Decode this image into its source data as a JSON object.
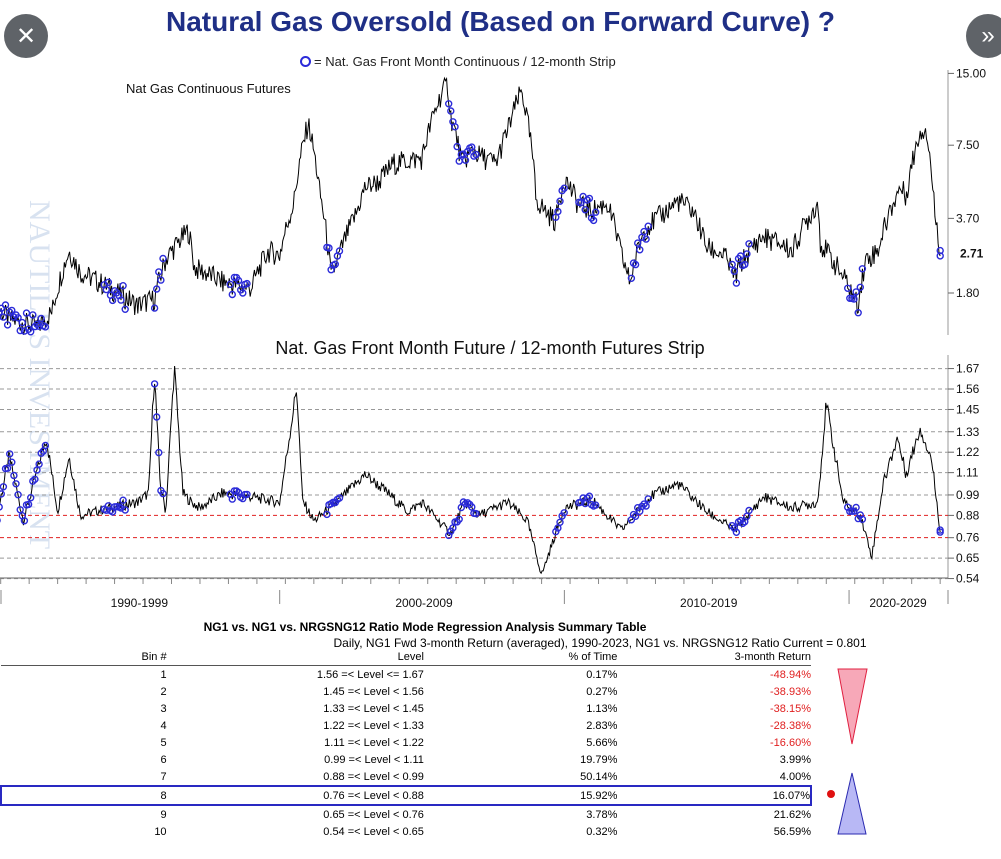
{
  "title": "Natural Gas Oversold (Based on Forward Curve) ?",
  "buttons": {
    "close_icon": "✕",
    "next_icon": "»"
  },
  "watermark": "NAUTILUS INVESTMENT",
  "legend": {
    "text": "= Nat. Gas Front Month Continuous / 12-month Strip"
  },
  "colors": {
    "price_line": "#000000",
    "marker": "#2b2bd9",
    "threshold": "#e02020",
    "title": "#1f2f86",
    "down_triangle": "#f7a8b8",
    "up_triangle": "#b8b8f5"
  },
  "chart_data": [
    {
      "type": "line",
      "title": "Nat Gas Continuous Futures",
      "yscale": "log",
      "ylim": [
        1.2,
        15.5
      ],
      "yticks": [
        "15.00",
        "7.50",
        "3.70",
        "1.80"
      ],
      "current_label": "2.71",
      "x_sections": [
        "1990-1999",
        "2000-2009",
        "2010-2019",
        "2020-2029"
      ],
      "x": [
        1990.0,
        1990.5,
        1991.0,
        1991.5,
        1992.0,
        1992.6,
        1993.0,
        1994.0,
        1995.0,
        1995.6,
        1996.0,
        1996.8,
        1997.0,
        1997.7,
        1998.0,
        1998.8,
        1999.0,
        1999.6,
        2000.0,
        2000.5,
        2001.0,
        2001.4,
        2001.8,
        2002.0,
        2002.7,
        2003.0,
        2003.5,
        2004.0,
        2004.6,
        2005.0,
        2005.7,
        2005.9,
        2006.0,
        2006.4,
        2006.8,
        2007.0,
        2007.6,
        2008.0,
        2008.5,
        2008.9,
        2009.0,
        2009.3,
        2009.7,
        2010.0,
        2010.5,
        2011.0,
        2011.5,
        2012.0,
        2012.3,
        2012.8,
        2013.0,
        2013.5,
        2014.0,
        2014.5,
        2015.0,
        2015.6,
        2016.0,
        2016.2,
        2016.7,
        2017.0,
        2017.6,
        2018.0,
        2018.9,
        2019.0,
        2019.6,
        2020.0,
        2020.3,
        2020.6,
        2021.0,
        2021.8,
        2022.0,
        2022.5,
        2022.7,
        2023.0,
        2023.2
      ],
      "values": [
        1.6,
        1.4,
        1.35,
        1.3,
        1.5,
        2.7,
        2.2,
        1.9,
        1.6,
        1.7,
        2.5,
        3.3,
        2.3,
        2.1,
        2.0,
        1.9,
        1.9,
        2.7,
        2.6,
        4.3,
        9.3,
        4.8,
        2.1,
        2.4,
        3.9,
        5.0,
        5.3,
        6.3,
        6.5,
        6.6,
        12.5,
        13.5,
        10.0,
        6.3,
        7.2,
        6.8,
        6.3,
        8.6,
        12.7,
        6.4,
        4.5,
        4.0,
        3.6,
        5.5,
        4.2,
        4.0,
        4.3,
        2.6,
        2.0,
        3.3,
        3.5,
        3.9,
        4.4,
        4.0,
        2.8,
        2.6,
        2.1,
        2.4,
        2.9,
        3.1,
        2.9,
        2.7,
        4.3,
        2.9,
        2.3,
        1.9,
        1.6,
        2.5,
        2.7,
        5.0,
        4.6,
        8.6,
        8.9,
        4.0,
        2.71
      ],
      "marker_ranges": [
        [
          1990.0,
          1991.8
        ],
        [
          1993.8,
          1994.6
        ],
        [
          1995.6,
          1995.9
        ],
        [
          1998.2,
          1998.9
        ],
        [
          2001.6,
          2002.1
        ],
        [
          2005.9,
          2006.9
        ],
        [
          2009.7,
          2010.0
        ],
        [
          2010.5,
          2011.1
        ],
        [
          2012.3,
          2013.0
        ],
        [
          2015.9,
          2016.5
        ],
        [
          2019.9,
          2020.5
        ],
        [
          2023.2,
          2023.2
        ]
      ]
    },
    {
      "type": "line",
      "title": "Nat. Gas Front Month Future / 12-month Futures Strip",
      "ylim": [
        0.5,
        1.7
      ],
      "yticks": [
        "1.67",
        "1.56",
        "1.45",
        "1.33",
        "1.22",
        "1.11",
        "0.99",
        "0.88",
        "0.76",
        "0.65",
        "0.54"
      ],
      "red_lines": [
        0.88,
        0.76
      ],
      "x_sections": [
        "1990-1999",
        "2000-2009",
        "2010-2019",
        "2020-2029"
      ],
      "x": [
        1990.0,
        1990.5,
        1991.0,
        1991.8,
        1992.2,
        1992.6,
        1993.0,
        1994.0,
        1995.0,
        1995.4,
        1995.6,
        1995.8,
        1996.0,
        1996.3,
        1996.6,
        1996.9,
        1997.2,
        1998.0,
        1999.0,
        2000.0,
        2000.6,
        2000.8,
        2001.2,
        2002.0,
        2003.0,
        2003.8,
        2004.5,
        2005.0,
        2006.0,
        2006.5,
        2007.0,
        2008.0,
        2008.7,
        2009.2,
        2010.0,
        2011.0,
        2012.0,
        2013.0,
        2014.0,
        2015.0,
        2016.0,
        2017.0,
        2018.0,
        2018.9,
        2019.2,
        2019.8,
        2020.4,
        2020.8,
        2021.2,
        2021.7,
        2022.0,
        2022.5,
        2022.9,
        2023.2
      ],
      "values": [
        0.82,
        1.2,
        0.85,
        1.3,
        0.9,
        1.2,
        0.88,
        0.92,
        0.95,
        1.0,
        1.65,
        1.05,
        0.9,
        1.68,
        1.0,
        0.95,
        0.92,
        1.0,
        0.98,
        0.95,
        1.57,
        0.96,
        0.85,
        0.95,
        1.1,
        1.0,
        0.9,
        0.95,
        0.78,
        0.95,
        0.88,
        0.95,
        0.85,
        0.56,
        0.92,
        0.96,
        0.8,
        0.98,
        1.05,
        0.9,
        0.8,
        0.98,
        0.92,
        0.95,
        1.48,
        0.95,
        0.88,
        0.66,
        1.05,
        1.3,
        1.1,
        1.35,
        1.18,
        0.801
      ],
      "marker_ranges": [
        [
          1990.0,
          1991.8
        ],
        [
          1993.8,
          1994.6
        ],
        [
          1995.6,
          1995.9
        ],
        [
          1998.2,
          1998.9
        ],
        [
          2001.6,
          2002.1
        ],
        [
          2005.9,
          2006.9
        ],
        [
          2009.7,
          2010.0
        ],
        [
          2010.5,
          2011.1
        ],
        [
          2012.3,
          2013.0
        ],
        [
          2015.9,
          2016.5
        ],
        [
          2019.9,
          2020.5
        ],
        [
          2023.2,
          2023.2
        ]
      ]
    },
    {
      "type": "table",
      "title": "NG1 vs. NG1 vs. NRGSNG12 Ratio Mode Regression Analysis Summary Table",
      "subtitle": "Daily, NG1 Fwd 3-month Return (averaged), 1990-2023, NG1 vs. NRGSNG12 Ratio Current = 0.801",
      "columns": [
        "Bin #",
        "Level",
        "% of Time",
        "3-month Return"
      ],
      "rows": [
        {
          "bin": "1",
          "level": "1.56 =< Level <= 1.67",
          "pct": "0.17%",
          "ret": "-48.94%",
          "neg": true
        },
        {
          "bin": "2",
          "level": "1.45 =< Level < 1.56",
          "pct": "0.27%",
          "ret": "-38.93%",
          "neg": true
        },
        {
          "bin": "3",
          "level": "1.33 =< Level < 1.45",
          "pct": "1.13%",
          "ret": "-38.15%",
          "neg": true
        },
        {
          "bin": "4",
          "level": "1.22 =< Level < 1.33",
          "pct": "2.83%",
          "ret": "-28.38%",
          "neg": true
        },
        {
          "bin": "5",
          "level": "1.11 =< Level < 1.22",
          "pct": "5.66%",
          "ret": "-16.60%",
          "neg": true
        },
        {
          "bin": "6",
          "level": "0.99 =< Level < 1.11",
          "pct": "19.79%",
          "ret": "3.99%",
          "neg": false
        },
        {
          "bin": "7",
          "level": "0.88 =< Level < 0.99",
          "pct": "50.14%",
          "ret": "4.00%",
          "neg": false
        },
        {
          "bin": "8",
          "level": "0.76 =< Level < 0.88",
          "pct": "15.92%",
          "ret": "16.07%",
          "neg": false,
          "current": true
        },
        {
          "bin": "9",
          "level": "0.65 =< Level < 0.76",
          "pct": "3.78%",
          "ret": "21.62%",
          "neg": false
        },
        {
          "bin": "10",
          "level": "0.54 =< Level < 0.65",
          "pct": "0.32%",
          "ret": "56.59%",
          "neg": false
        }
      ]
    }
  ]
}
